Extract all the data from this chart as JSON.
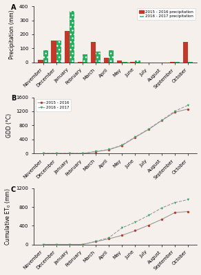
{
  "months": [
    "November",
    "December",
    "January",
    "February",
    "March",
    "April",
    "May",
    "June",
    "July",
    "August",
    "September",
    "October"
  ],
  "precip_2015_2016": [
    20,
    155,
    225,
    3,
    148,
    33,
    12,
    2,
    0,
    0,
    3,
    145
  ],
  "precip_2016_2017": [
    88,
    155,
    368,
    58,
    78,
    88,
    3,
    12,
    0,
    0,
    2,
    5
  ],
  "gdd_2015_2016": [
    0,
    0,
    0,
    0,
    48,
    105,
    225,
    460,
    680,
    935,
    1175,
    1265
  ],
  "gdd_2016_2017": [
    0,
    0,
    0,
    0,
    52,
    112,
    240,
    470,
    695,
    945,
    1205,
    1375
  ],
  "et0_2015_2016": [
    0,
    0,
    0,
    0,
    60,
    120,
    195,
    295,
    410,
    535,
    680,
    705
  ],
  "et0_2016_2017": [
    0,
    0,
    0,
    0,
    65,
    145,
    355,
    475,
    620,
    780,
    895,
    960
  ],
  "color_red": "#c0392b",
  "color_green": "#27ae60",
  "color_gray": "#999999",
  "bar_width": 0.38,
  "ylim_precip": [
    0,
    400
  ],
  "ylim_gdd": [
    0,
    1600
  ],
  "ylim_et0": [
    0,
    1200
  ],
  "yticks_precip": [
    0,
    100,
    200,
    300,
    400
  ],
  "yticks_gdd": [
    0,
    400,
    800,
    1200,
    1600
  ],
  "yticks_et0": [
    0,
    400,
    800,
    1200
  ],
  "plot_bg": "#f5f0eb",
  "fig_bg": "#f5f0eb"
}
